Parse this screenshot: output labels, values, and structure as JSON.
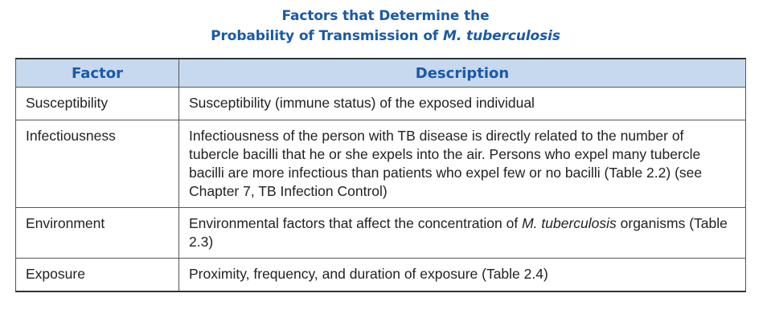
{
  "title": {
    "line1": "Factors that Determine the",
    "line2_prefix": "Probability of Transmission of ",
    "line2_italic": "M. tuberculosis"
  },
  "table": {
    "headers": [
      "Factor",
      "Description"
    ],
    "rows": [
      {
        "factor": "Susceptibility",
        "description": "Susceptibility (immune status) of the exposed individual"
      },
      {
        "factor": "Infectiousness",
        "description": "Infectiousness of the person with TB disease is directly related to the number of tubercle bacilli that he or she expels into the air. Persons who expel many tubercle bacilli are more infectious than patients who expel few or no bacilli (Table 2.2) (see Chapter 7, TB Infection Control)"
      },
      {
        "factor": "Environment",
        "description_before": "Environmental factors that affect the concentration of ",
        "description_italic": "M. tuberculosis",
        "description_after": " organisms (Table 2.3)"
      },
      {
        "factor": "Exposure",
        "description": "Proximity, frequency, and duration of exposure (Table 2.4)"
      }
    ]
  },
  "colors": {
    "title_blue": "#1a5aa6",
    "header_fill": "#c7d9ef",
    "border": "#555555"
  }
}
